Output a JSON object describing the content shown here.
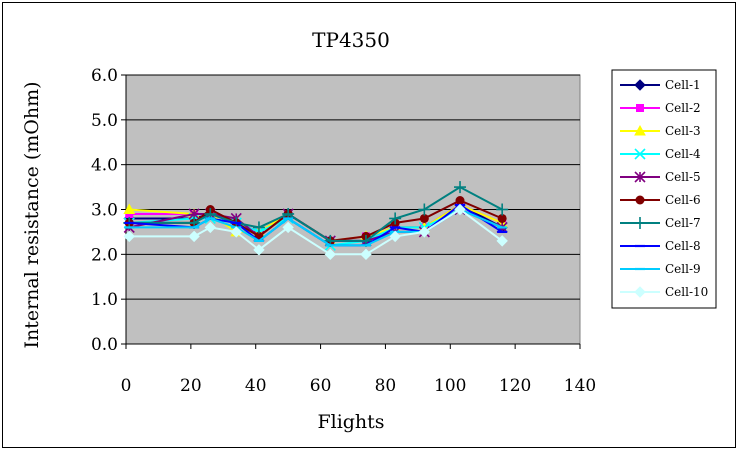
{
  "chart_data": {
    "type": "line",
    "title": "TP4350",
    "xlabel": "Flights",
    "ylabel": "Internal resistance (mOhm)",
    "xlim": [
      0,
      140
    ],
    "ylim": [
      0.0,
      6.0
    ],
    "x_ticks": [
      "0",
      "20",
      "40",
      "60",
      "80",
      "100",
      "120",
      "140"
    ],
    "y_ticks": [
      "0.0",
      "1.0",
      "2.0",
      "3.0",
      "4.0",
      "5.0",
      "6.0"
    ],
    "grid": "horizontal",
    "legend_position": "right",
    "plot_background": "#c0c0c0",
    "x": [
      1,
      21,
      26,
      34,
      41,
      50,
      63,
      74,
      83,
      92,
      103,
      116
    ],
    "series": [
      {
        "name": "Cell-1",
        "color": "#000080",
        "marker": "diamond",
        "values": [
          2.8,
          2.8,
          2.9,
          2.7,
          2.5,
          2.9,
          2.3,
          2.3,
          2.6,
          2.6,
          3.1,
          2.6
        ]
      },
      {
        "name": "Cell-2",
        "color": "#ff00ff",
        "marker": "square",
        "values": [
          2.9,
          2.9,
          2.9,
          2.7,
          2.5,
          2.9,
          2.3,
          2.4,
          2.6,
          2.6,
          3.1,
          2.7
        ]
      },
      {
        "name": "Cell-3",
        "color": "#ffff00",
        "marker": "triangle",
        "values": [
          3.0,
          2.9,
          2.9,
          2.5,
          2.5,
          2.9,
          2.3,
          2.4,
          2.6,
          2.6,
          3.1,
          2.7
        ]
      },
      {
        "name": "Cell-4",
        "color": "#00ffff",
        "marker": "x",
        "values": [
          2.7,
          2.8,
          2.8,
          2.7,
          2.5,
          2.8,
          2.2,
          2.3,
          2.6,
          2.6,
          3.0,
          2.6
        ]
      },
      {
        "name": "Cell-5",
        "color": "#800080",
        "marker": "star",
        "values": [
          2.6,
          2.9,
          2.9,
          2.8,
          2.4,
          2.9,
          2.3,
          2.3,
          2.5,
          2.5,
          3.0,
          2.6
        ]
      },
      {
        "name": "Cell-6",
        "color": "#800000",
        "marker": "circle",
        "values": [
          2.7,
          2.7,
          3.0,
          2.7,
          2.4,
          2.9,
          2.3,
          2.4,
          2.7,
          2.8,
          3.2,
          2.8
        ]
      },
      {
        "name": "Cell-7",
        "color": "#008080",
        "marker": "plus",
        "values": [
          2.7,
          2.7,
          2.9,
          2.7,
          2.6,
          2.9,
          2.3,
          2.3,
          2.8,
          3.0,
          3.5,
          3.0
        ]
      },
      {
        "name": "Cell-8",
        "color": "#0000ff",
        "marker": "dash",
        "values": [
          2.7,
          2.6,
          2.8,
          2.7,
          2.3,
          2.8,
          2.2,
          2.2,
          2.6,
          2.5,
          3.1,
          2.5
        ]
      },
      {
        "name": "Cell-9",
        "color": "#00ccff",
        "marker": "dash",
        "values": [
          2.6,
          2.6,
          2.8,
          2.6,
          2.3,
          2.8,
          2.2,
          2.2,
          2.5,
          2.5,
          3.0,
          2.6
        ]
      },
      {
        "name": "Cell-10",
        "color": "#ccffff",
        "marker": "diamond",
        "values": [
          2.4,
          2.4,
          2.6,
          2.5,
          2.1,
          2.6,
          2.0,
          2.0,
          2.4,
          2.5,
          3.0,
          2.3
        ]
      }
    ]
  }
}
